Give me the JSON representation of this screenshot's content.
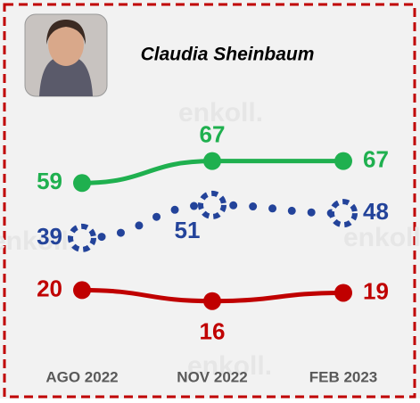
{
  "chart_data": {
    "type": "line",
    "title": "Claudia Sheinbaum",
    "watermark": "enkoll.",
    "categories": [
      "AGO 2022",
      "NOV 2022",
      "FEB 2023"
    ],
    "series": [
      {
        "color": "#1fb04f",
        "values": [
          59,
          67,
          67
        ],
        "style": "solid"
      },
      {
        "color": "#23439a",
        "values": [
          39,
          51,
          48
        ],
        "style": "dotted"
      },
      {
        "color": "#c00000",
        "values": [
          20,
          16,
          19
        ],
        "style": "solid"
      }
    ]
  }
}
